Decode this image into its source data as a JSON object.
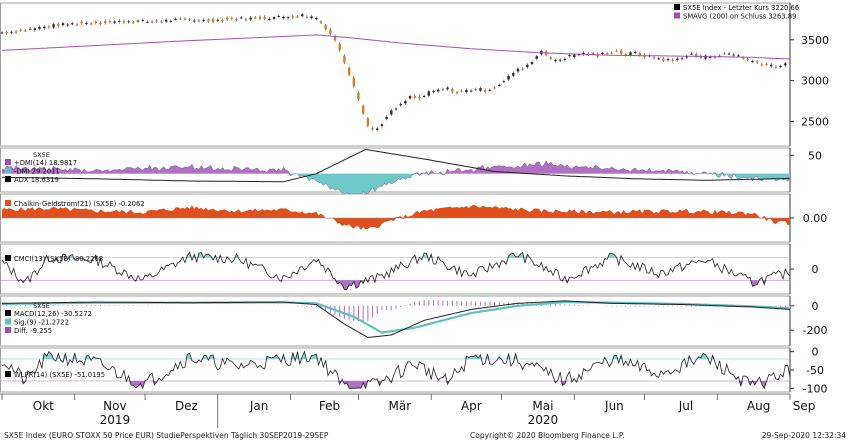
{
  "chart_data": {
    "type": "line",
    "x_range": [
      "2019-09-30",
      "2020-09-29"
    ],
    "month_labels": [
      "Okt",
      "Nov",
      "Dez",
      "Jan",
      "Feb",
      "Mär",
      "Apr",
      "Mai",
      "Jun",
      "Jul",
      "Aug",
      "Sep"
    ],
    "year_labels": [
      "2019",
      "2020"
    ],
    "footer": {
      "left": "SX5E Index (EURO STOXX 50 Price EUR) StudiePerspektiven  Täglich 30SEP2019-29SEP",
      "center": "Copyright© 2020 Bloomberg Finance L.P.",
      "right": "29-Sep-2020 12:32:34"
    },
    "panels": [
      {
        "id": "price",
        "type": "candlestick",
        "y_ticks": [
          2500,
          3000,
          3500
        ],
        "ylim": [
          2200,
          3950
        ],
        "legend": [
          {
            "label": "SX5E Index - Letzter Kurs",
            "value": "3220.66",
            "color": "#000000"
          },
          {
            "label": "SMAVG (200)  on Schluss",
            "value": "3263.89",
            "color": "#a050b4"
          }
        ],
        "close": [
          [
            0,
            3590
          ],
          [
            8,
            3610
          ],
          [
            16,
            3650
          ],
          [
            24,
            3680
          ],
          [
            32,
            3700
          ],
          [
            40,
            3710
          ],
          [
            48,
            3720
          ],
          [
            56,
            3730
          ],
          [
            64,
            3720
          ],
          [
            72,
            3740
          ],
          [
            80,
            3745
          ],
          [
            88,
            3735
          ],
          [
            96,
            3750
          ],
          [
            104,
            3760
          ],
          [
            112,
            3770
          ],
          [
            120,
            3780
          ],
          [
            128,
            3800
          ],
          [
            134,
            3770
          ],
          [
            138,
            3650
          ],
          [
            142,
            3500
          ],
          [
            146,
            3230
          ],
          [
            150,
            2950
          ],
          [
            153,
            2700
          ],
          [
            156,
            2450
          ],
          [
            159,
            2380
          ],
          [
            162,
            2480
          ],
          [
            166,
            2620
          ],
          [
            170,
            2700
          ],
          [
            174,
            2800
          ],
          [
            178,
            2780
          ],
          [
            182,
            2850
          ],
          [
            186,
            2880
          ],
          [
            190,
            2900
          ],
          [
            194,
            2850
          ],
          [
            198,
            2880
          ],
          [
            202,
            2900
          ],
          [
            206,
            2880
          ],
          [
            210,
            2920
          ],
          [
            214,
            2990
          ],
          [
            218,
            3100
          ],
          [
            222,
            3160
          ],
          [
            226,
            3230
          ],
          [
            230,
            3380
          ],
          [
            234,
            3250
          ],
          [
            238,
            3260
          ],
          [
            242,
            3300
          ],
          [
            246,
            3330
          ],
          [
            250,
            3330
          ],
          [
            254,
            3300
          ],
          [
            258,
            3350
          ],
          [
            262,
            3360
          ],
          [
            266,
            3320
          ],
          [
            270,
            3340
          ],
          [
            274,
            3300
          ],
          [
            278,
            3280
          ],
          [
            282,
            3260
          ],
          [
            286,
            3240
          ],
          [
            290,
            3290
          ],
          [
            294,
            3320
          ],
          [
            298,
            3280
          ],
          [
            302,
            3300
          ],
          [
            306,
            3310
          ],
          [
            310,
            3330
          ],
          [
            314,
            3310
          ],
          [
            318,
            3250
          ],
          [
            322,
            3220
          ],
          [
            326,
            3200
          ],
          [
            330,
            3180
          ],
          [
            333,
            3180
          ],
          [
            336,
            3220
          ]
        ],
        "smavg200": [
          [
            0,
            3370
          ],
          [
            40,
            3430
          ],
          [
            80,
            3490
          ],
          [
            120,
            3540
          ],
          [
            134,
            3560
          ],
          [
            150,
            3520
          ],
          [
            170,
            3460
          ],
          [
            200,
            3390
          ],
          [
            230,
            3340
          ],
          [
            260,
            3310
          ],
          [
            290,
            3300
          ],
          [
            320,
            3285
          ],
          [
            336,
            3264
          ]
        ]
      },
      {
        "id": "dmi",
        "y_ticks": [
          50
        ],
        "ylim": [
          0,
          60
        ],
        "legend_header": "SX5E",
        "legend": [
          {
            "label": "+DMI(14)",
            "value": "18.9817",
            "color": "#a050b4"
          },
          {
            "label": "-DMI",
            "value": "29.2011",
            "color": "#5fc0c0"
          },
          {
            "label": "ADX",
            "value": "18.6319",
            "color": "#000000"
          }
        ],
        "plus_dmi": [
          [
            0,
            28
          ],
          [
            40,
            26
          ],
          [
            80,
            28
          ],
          [
            120,
            25
          ],
          [
            134,
            20
          ],
          [
            150,
            10
          ],
          [
            180,
            28
          ],
          [
            200,
            30
          ],
          [
            230,
            35
          ],
          [
            260,
            28
          ],
          [
            290,
            25
          ],
          [
            320,
            20
          ],
          [
            336,
            19
          ]
        ],
        "minus_dmi": [
          [
            0,
            18
          ],
          [
            40,
            20
          ],
          [
            80,
            17
          ],
          [
            120,
            20
          ],
          [
            134,
            30
          ],
          [
            150,
            50
          ],
          [
            170,
            32
          ],
          [
            200,
            22
          ],
          [
            230,
            18
          ],
          [
            260,
            20
          ],
          [
            290,
            22
          ],
          [
            320,
            28
          ],
          [
            336,
            29
          ]
        ],
        "adx": [
          [
            0,
            20
          ],
          [
            40,
            18
          ],
          [
            80,
            15
          ],
          [
            120,
            14
          ],
          [
            134,
            25
          ],
          [
            155,
            58
          ],
          [
            180,
            45
          ],
          [
            210,
            28
          ],
          [
            240,
            22
          ],
          [
            270,
            18
          ],
          [
            300,
            16
          ],
          [
            330,
            18
          ],
          [
            336,
            18.6
          ]
        ]
      },
      {
        "id": "chaikin",
        "y_ticks_text": [
          "0.00"
        ],
        "ylim": [
          -1,
          1
        ],
        "legend": [
          {
            "label": "Chaikin-Geldstrom(21) (SX5E)",
            "value": "-0.2062",
            "color": "#e0501e"
          }
        ],
        "values": [
          [
            0,
            0.35
          ],
          [
            20,
            0.4
          ],
          [
            40,
            0.3
          ],
          [
            60,
            0.25
          ],
          [
            80,
            0.45
          ],
          [
            100,
            0.3
          ],
          [
            120,
            0.35
          ],
          [
            134,
            0.2
          ],
          [
            146,
            -0.3
          ],
          [
            156,
            -0.5
          ],
          [
            166,
            -0.1
          ],
          [
            180,
            0.3
          ],
          [
            200,
            0.5
          ],
          [
            230,
            0.3
          ],
          [
            260,
            0.25
          ],
          [
            290,
            0.3
          ],
          [
            320,
            0.2
          ],
          [
            330,
            -0.2
          ],
          [
            336,
            -0.21
          ]
        ]
      },
      {
        "id": "cmci",
        "y_ticks": [
          0
        ],
        "ylim": [
          -220,
          220
        ],
        "legend": [
          {
            "label": "CMCI(13) (SX5E)",
            "value": "-30.2268",
            "color": "#000000"
          }
        ],
        "values": [
          [
            0,
            60
          ],
          [
            10,
            -120
          ],
          [
            20,
            100
          ],
          [
            40,
            80
          ],
          [
            60,
            -100
          ],
          [
            80,
            110
          ],
          [
            100,
            90
          ],
          [
            120,
            -80
          ],
          [
            134,
            90
          ],
          [
            146,
            -150
          ],
          [
            160,
            -80
          ],
          [
            180,
            120
          ],
          [
            200,
            -60
          ],
          [
            220,
            130
          ],
          [
            240,
            -90
          ],
          [
            260,
            100
          ],
          [
            280,
            -40
          ],
          [
            300,
            80
          ],
          [
            320,
            -120
          ],
          [
            336,
            -30
          ]
        ]
      },
      {
        "id": "macd",
        "y_ticks": [
          0,
          -200
        ],
        "ylim": [
          -330,
          80
        ],
        "legend_header": "SX5E",
        "legend": [
          {
            "label": "MACD(12,26)",
            "value": "-30.5272",
            "color": "#000000"
          },
          {
            "label": "Sig.(9)",
            "value": "-21.2722",
            "color": "#5fc0c0"
          },
          {
            "label": "Diff.",
            "value": "-9.255",
            "color": "#a050b4"
          }
        ],
        "macd": [
          [
            0,
            20
          ],
          [
            40,
            30
          ],
          [
            80,
            25
          ],
          [
            120,
            30
          ],
          [
            134,
            10
          ],
          [
            146,
            -150
          ],
          [
            156,
            -260
          ],
          [
            166,
            -240
          ],
          [
            180,
            -120
          ],
          [
            200,
            -30
          ],
          [
            220,
            20
          ],
          [
            240,
            40
          ],
          [
            260,
            20
          ],
          [
            290,
            10
          ],
          [
            320,
            -10
          ],
          [
            336,
            -30
          ]
        ],
        "signal": [
          [
            0,
            15
          ],
          [
            40,
            25
          ],
          [
            80,
            25
          ],
          [
            120,
            28
          ],
          [
            134,
            20
          ],
          [
            150,
            -90
          ],
          [
            162,
            -220
          ],
          [
            176,
            -180
          ],
          [
            200,
            -60
          ],
          [
            220,
            0
          ],
          [
            240,
            30
          ],
          [
            260,
            25
          ],
          [
            290,
            15
          ],
          [
            320,
            -5
          ],
          [
            336,
            -21
          ]
        ]
      },
      {
        "id": "wlpr",
        "y_ticks": [
          0,
          -50,
          -100
        ],
        "ylim": [
          -110,
          10
        ],
        "legend": [
          {
            "label": "WLPR(14) (SX5E)",
            "value": "-51.0195",
            "color": "#000000"
          }
        ],
        "values": [
          [
            0,
            -20
          ],
          [
            10,
            -80
          ],
          [
            20,
            -10
          ],
          [
            40,
            -30
          ],
          [
            60,
            -90
          ],
          [
            80,
            -15
          ],
          [
            100,
            -40
          ],
          [
            120,
            -20
          ],
          [
            134,
            -10
          ],
          [
            146,
            -95
          ],
          [
            160,
            -90
          ],
          [
            176,
            -30
          ],
          [
            190,
            -85
          ],
          [
            200,
            -15
          ],
          [
            220,
            -25
          ],
          [
            240,
            -80
          ],
          [
            260,
            -20
          ],
          [
            280,
            -60
          ],
          [
            300,
            -15
          ],
          [
            320,
            -95
          ],
          [
            336,
            -51
          ]
        ]
      }
    ]
  }
}
